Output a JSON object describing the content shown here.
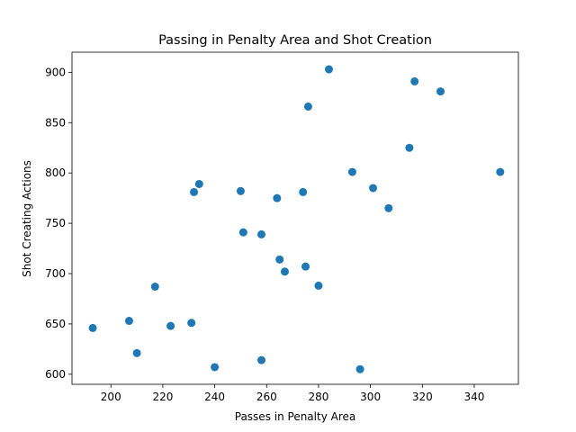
{
  "chart_data": {
    "type": "scatter",
    "title": "Passing in Penalty Area and Shot Creation",
    "xlabel": "Passes in Penalty Area",
    "ylabel": "Shot Creating Actions",
    "xlim": [
      185,
      357
    ],
    "ylim": [
      590,
      920
    ],
    "xticks": [
      200,
      220,
      240,
      260,
      280,
      300,
      320,
      340
    ],
    "yticks": [
      600,
      650,
      700,
      750,
      800,
      850,
      900
    ],
    "grid": false,
    "marker_color": "#1f77b4",
    "points": [
      {
        "x": 193,
        "y": 646
      },
      {
        "x": 207,
        "y": 653
      },
      {
        "x": 210,
        "y": 621
      },
      {
        "x": 217,
        "y": 687
      },
      {
        "x": 223,
        "y": 648
      },
      {
        "x": 231,
        "y": 651
      },
      {
        "x": 232,
        "y": 781
      },
      {
        "x": 234,
        "y": 789
      },
      {
        "x": 240,
        "y": 607
      },
      {
        "x": 250,
        "y": 782
      },
      {
        "x": 251,
        "y": 741
      },
      {
        "x": 258,
        "y": 739
      },
      {
        "x": 258,
        "y": 614
      },
      {
        "x": 264,
        "y": 775
      },
      {
        "x": 265,
        "y": 714
      },
      {
        "x": 267,
        "y": 702
      },
      {
        "x": 274,
        "y": 781
      },
      {
        "x": 275,
        "y": 707
      },
      {
        "x": 276,
        "y": 866
      },
      {
        "x": 280,
        "y": 688
      },
      {
        "x": 284,
        "y": 903
      },
      {
        "x": 293,
        "y": 801
      },
      {
        "x": 296,
        "y": 605
      },
      {
        "x": 301,
        "y": 785
      },
      {
        "x": 307,
        "y": 765
      },
      {
        "x": 315,
        "y": 825
      },
      {
        "x": 317,
        "y": 891
      },
      {
        "x": 327,
        "y": 881
      },
      {
        "x": 350,
        "y": 801
      }
    ]
  }
}
